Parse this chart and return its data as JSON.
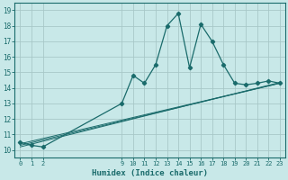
{
  "title": "",
  "xlabel": "Humidex (Indice chaleur)",
  "bg_color": "#c8e8e8",
  "grid_color": "#a8c8c8",
  "line_color": "#1a6b6b",
  "x_ticks": [
    0,
    1,
    2,
    9,
    10,
    11,
    12,
    13,
    14,
    15,
    16,
    17,
    18,
    19,
    20,
    21,
    22,
    23
  ],
  "ylim": [
    9.5,
    19.5
  ],
  "xlim": [
    -0.5,
    23.5
  ],
  "y_ticks": [
    10,
    11,
    12,
    13,
    14,
    15,
    16,
    17,
    18,
    19
  ],
  "line1_x": [
    0,
    1,
    2,
    9,
    10,
    11,
    12,
    13,
    14,
    15,
    16,
    17,
    18,
    19,
    20,
    21,
    22,
    23
  ],
  "line1_y": [
    10.5,
    10.3,
    10.2,
    13.0,
    14.8,
    14.3,
    15.5,
    18.0,
    18.8,
    15.3,
    18.1,
    17.0,
    15.5,
    14.3,
    14.2,
    14.3,
    14.45,
    14.3
  ],
  "line2_x": [
    0,
    23
  ],
  "line2_y": [
    10.4,
    14.3
  ],
  "line3_x": [
    0,
    23
  ],
  "line3_y": [
    10.3,
    14.3
  ],
  "line4_x": [
    0,
    23
  ],
  "line4_y": [
    10.2,
    14.35
  ]
}
